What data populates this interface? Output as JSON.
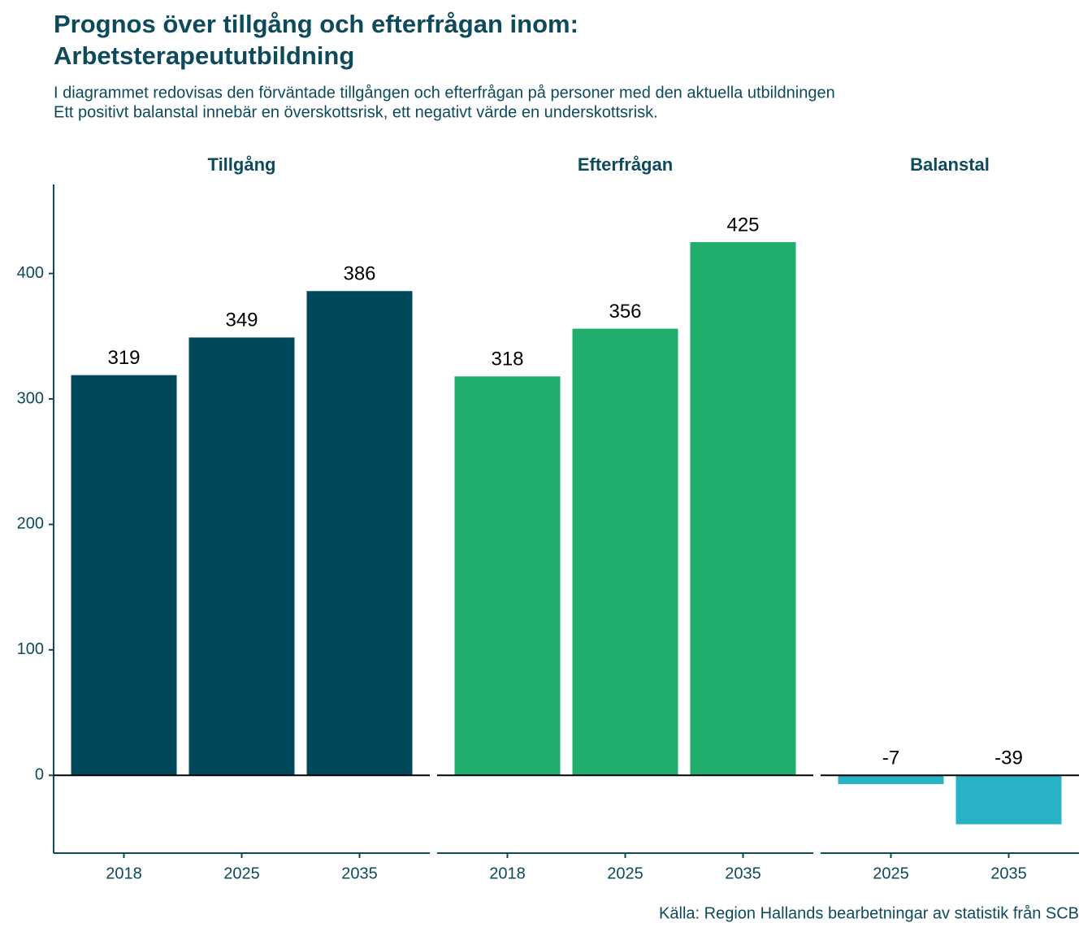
{
  "title": [
    "Prognos över tillgång och efterfrågan inom:",
    "Arbetsterapeututbildning"
  ],
  "subtitle": [
    "I diagrammet redovisas den förväntade tillgången och efterfrågan på personer med den aktuella utbildningen",
    "Ett positivt balanstal innebär en överskottsrisk, ett negativt värde en underskottsrisk."
  ],
  "caption": "Källa: Region Hallands bearbetningar av statistik från SCB",
  "chart_data": [
    {
      "type": "bar",
      "title": "Tillgång",
      "categories": [
        "2018",
        "2025",
        "2035"
      ],
      "values": [
        319,
        349,
        386
      ],
      "color": "#00495c",
      "ylim": [
        -62,
        471
      ],
      "yticks": [
        0,
        100,
        200,
        300,
        400
      ]
    },
    {
      "type": "bar",
      "title": "Efterfrågan",
      "categories": [
        "2018",
        "2025",
        "2035"
      ],
      "values": [
        318,
        356,
        425
      ],
      "color": "#21ae6d",
      "ylim": [
        -62,
        471
      ]
    },
    {
      "type": "bar",
      "title": "Balanstal",
      "categories": [
        "2025",
        "2035"
      ],
      "values": [
        -7,
        -39
      ],
      "color": "#27b2c5",
      "ylim": [
        -62,
        471
      ]
    }
  ]
}
